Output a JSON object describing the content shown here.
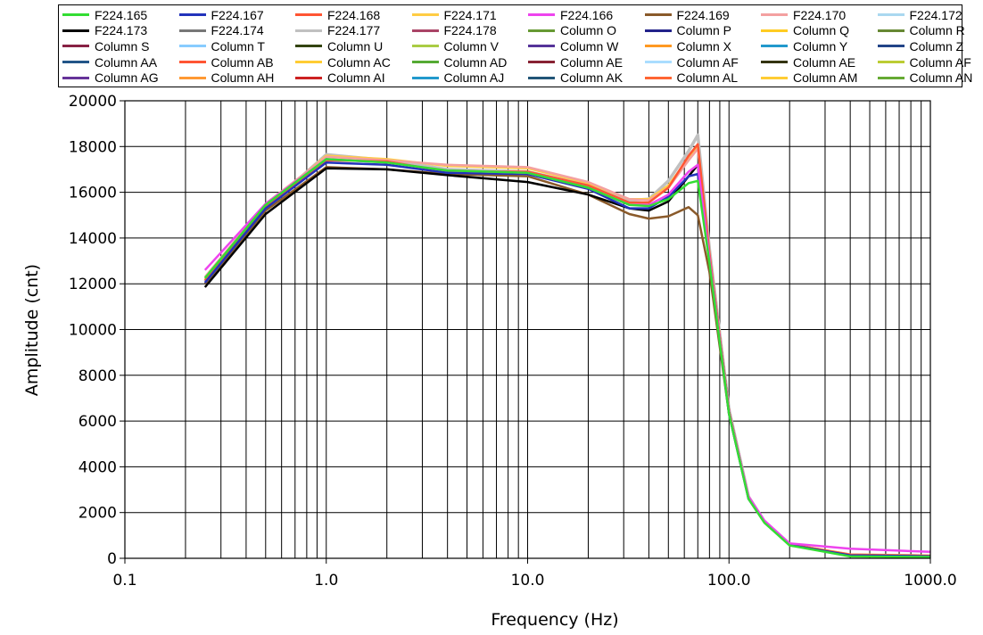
{
  "chart_data": {
    "type": "line",
    "xlabel": "Frequency (Hz)",
    "ylabel": "Amplitude (cnt)",
    "x_scale": "log",
    "xlim": [
      0.1,
      1000.0
    ],
    "ylim": [
      0,
      20000
    ],
    "x_ticks": [
      "0.1",
      "1.0",
      "10.0",
      "100.0",
      "1000.0"
    ],
    "y_ticks": [
      "0",
      "2000",
      "4000",
      "6000",
      "8000",
      "10000",
      "12000",
      "14000",
      "16000",
      "18000",
      "20000"
    ],
    "grid": "on",
    "legend_position": "top",
    "legend": [
      {
        "name": "F224.165",
        "color": "#33dd33"
      },
      {
        "name": "F224.167",
        "color": "#2233bb"
      },
      {
        "name": "F224.168",
        "color": "#ff5533"
      },
      {
        "name": "F224.171",
        "color": "#ffcc44"
      },
      {
        "name": "F224.166",
        "color": "#ee44ee"
      },
      {
        "name": "F224.169",
        "color": "#8a5a2a"
      },
      {
        "name": "F224.170",
        "color": "#f4a0a0"
      },
      {
        "name": "F224.172",
        "color": "#aad8f0"
      },
      {
        "name": "F224.173",
        "color": "#000000"
      },
      {
        "name": "F224.174",
        "color": "#777777"
      },
      {
        "name": "F224.177",
        "color": "#c0c0c0"
      },
      {
        "name": "F224.178",
        "color": "#aa4466"
      },
      {
        "name": "Column O",
        "color": "#669933"
      },
      {
        "name": "Column P",
        "color": "#22228a"
      },
      {
        "name": "Column Q",
        "color": "#ffcc22"
      },
      {
        "name": "Column R",
        "color": "#668833"
      },
      {
        "name": "Column S",
        "color": "#882244"
      },
      {
        "name": "Column T",
        "color": "#88ccff"
      },
      {
        "name": "Column U",
        "color": "#334411"
      },
      {
        "name": "Column V",
        "color": "#aacc44"
      },
      {
        "name": "Column W",
        "color": "#553399"
      },
      {
        "name": "Column X",
        "color": "#ff9922"
      },
      {
        "name": "Column Y",
        "color": "#2299cc"
      },
      {
        "name": "Column Z",
        "color": "#224488"
      },
      {
        "name": "Column AA",
        "color": "#225588"
      },
      {
        "name": "Column AB",
        "color": "#ff5533"
      },
      {
        "name": "Column AC",
        "color": "#ffcc33"
      },
      {
        "name": "Column AD",
        "color": "#55aa33"
      },
      {
        "name": "Column AE",
        "color": "#882233"
      },
      {
        "name": "Column AF",
        "color": "#aaddff"
      },
      {
        "name": "Column AE",
        "color": "#333311"
      },
      {
        "name": "Column AF",
        "color": "#bbcc33"
      },
      {
        "name": "Column AG",
        "color": "#663399"
      },
      {
        "name": "Column AH",
        "color": "#ff9933"
      },
      {
        "name": "Column AI",
        "color": "#cc2222"
      },
      {
        "name": "Column AJ",
        "color": "#2299cc"
      },
      {
        "name": "Column AK",
        "color": "#225577"
      },
      {
        "name": "Column AL",
        "color": "#ff6633"
      },
      {
        "name": "Column AM",
        "color": "#ffcc33"
      },
      {
        "name": "Column AN",
        "color": "#66aa33"
      }
    ],
    "series": [
      {
        "name": "F224.177",
        "color": "#c0c0c0",
        "width": 3.5,
        "x": [
          0.25,
          0.5,
          1,
          2,
          4,
          10,
          20,
          32,
          40,
          50,
          63,
          70,
          80,
          100,
          125,
          150,
          200,
          400,
          1000
        ],
        "y": [
          12100,
          15300,
          17650,
          17400,
          17000,
          16900,
          16300,
          15650,
          15700,
          16500,
          17800,
          18500,
          13500,
          6500,
          2700,
          1600,
          600,
          150,
          100
        ]
      },
      {
        "name": "F224.171",
        "color": "#ffcc44",
        "width": 2.5,
        "x": [
          0.25,
          0.5,
          1,
          2,
          4,
          10,
          20,
          32,
          40,
          50,
          63,
          70,
          80,
          100,
          125,
          150,
          200,
          400,
          1000
        ],
        "y": [
          12200,
          15400,
          17600,
          17450,
          17150,
          17050,
          16400,
          15700,
          15700,
          16300,
          17500,
          18000,
          13300,
          6400,
          2700,
          1600,
          620,
          170,
          120
        ]
      },
      {
        "name": "F224.170",
        "color": "#f4a0a0",
        "width": 2.5,
        "x": [
          0.25,
          0.5,
          1,
          2,
          4,
          10,
          20,
          32,
          40,
          50,
          63,
          70,
          80,
          100,
          125,
          150,
          200,
          400,
          1000
        ],
        "y": [
          12300,
          15500,
          17550,
          17400,
          17200,
          17100,
          16450,
          15700,
          15650,
          16200,
          17400,
          17900,
          13200,
          6300,
          2600,
          1550,
          600,
          160,
          100
        ]
      },
      {
        "name": "F224.169",
        "color": "#8a5a2a",
        "width": 2.5,
        "x": [
          0.25,
          0.5,
          1,
          2,
          4,
          10,
          20,
          32,
          40,
          50,
          63,
          70,
          80,
          100,
          125,
          150,
          200,
          400,
          1000
        ],
        "y": [
          12000,
          15200,
          17100,
          17000,
          16800,
          16700,
          15900,
          15050,
          14850,
          14950,
          15350,
          15000,
          12500,
          6300,
          2650,
          1600,
          600,
          120,
          90
        ]
      },
      {
        "name": "F224.173",
        "color": "#000000",
        "width": 2.5,
        "x": [
          0.25,
          0.5,
          1,
          2,
          4,
          10,
          20,
          32,
          40,
          50,
          63,
          70,
          80,
          100,
          125,
          150,
          200,
          400,
          1000
        ],
        "y": [
          11850,
          15050,
          17050,
          17000,
          16750,
          16450,
          15900,
          15300,
          15200,
          15600,
          16700,
          17200,
          13200,
          6400,
          2650,
          1580,
          600,
          140,
          100
        ]
      },
      {
        "name": "F224.168",
        "color": "#ff5533",
        "width": 2.5,
        "x": [
          0.25,
          0.5,
          1,
          2,
          4,
          10,
          20,
          32,
          40,
          50,
          63,
          70,
          80,
          100,
          125,
          150,
          200,
          400,
          1000
        ],
        "y": [
          12150,
          15350,
          17400,
          17350,
          16900,
          16900,
          16300,
          15550,
          15550,
          16200,
          17600,
          18100,
          13300,
          6400,
          2650,
          1600,
          600,
          160,
          110
        ]
      },
      {
        "name": "F224.167",
        "color": "#2233bb",
        "width": 2.5,
        "x": [
          0.25,
          0.5,
          1,
          2,
          4,
          10,
          20,
          32,
          40,
          50,
          63,
          70,
          80,
          100,
          125,
          150,
          200,
          400,
          1000
        ],
        "y": [
          12050,
          15300,
          17300,
          17200,
          16850,
          16800,
          16150,
          15300,
          15300,
          15800,
          16700,
          16800,
          13000,
          6300,
          2600,
          1580,
          580,
          130,
          90
        ]
      },
      {
        "name": "F224.166",
        "color": "#ee44ee",
        "width": 2.5,
        "x": [
          0.25,
          0.5,
          1,
          2,
          4,
          10,
          20,
          32,
          40,
          50,
          63,
          70,
          80,
          100,
          125,
          150,
          200,
          400,
          1000
        ],
        "y": [
          12600,
          15500,
          17450,
          17300,
          16950,
          16850,
          16200,
          15450,
          15450,
          15900,
          16900,
          17200,
          13100,
          6350,
          2700,
          1650,
          650,
          420,
          280
        ]
      },
      {
        "name": "F224.165",
        "color": "#33dd33",
        "width": 2.5,
        "x": [
          0.25,
          0.5,
          1,
          2,
          4,
          10,
          20,
          32,
          40,
          50,
          63,
          70,
          80,
          100,
          125,
          150,
          200,
          400,
          1000
        ],
        "y": [
          12250,
          15450,
          17450,
          17300,
          16950,
          16850,
          16200,
          15450,
          15400,
          15700,
          16400,
          16500,
          12900,
          6300,
          2600,
          1550,
          560,
          80,
          60
        ]
      }
    ]
  }
}
